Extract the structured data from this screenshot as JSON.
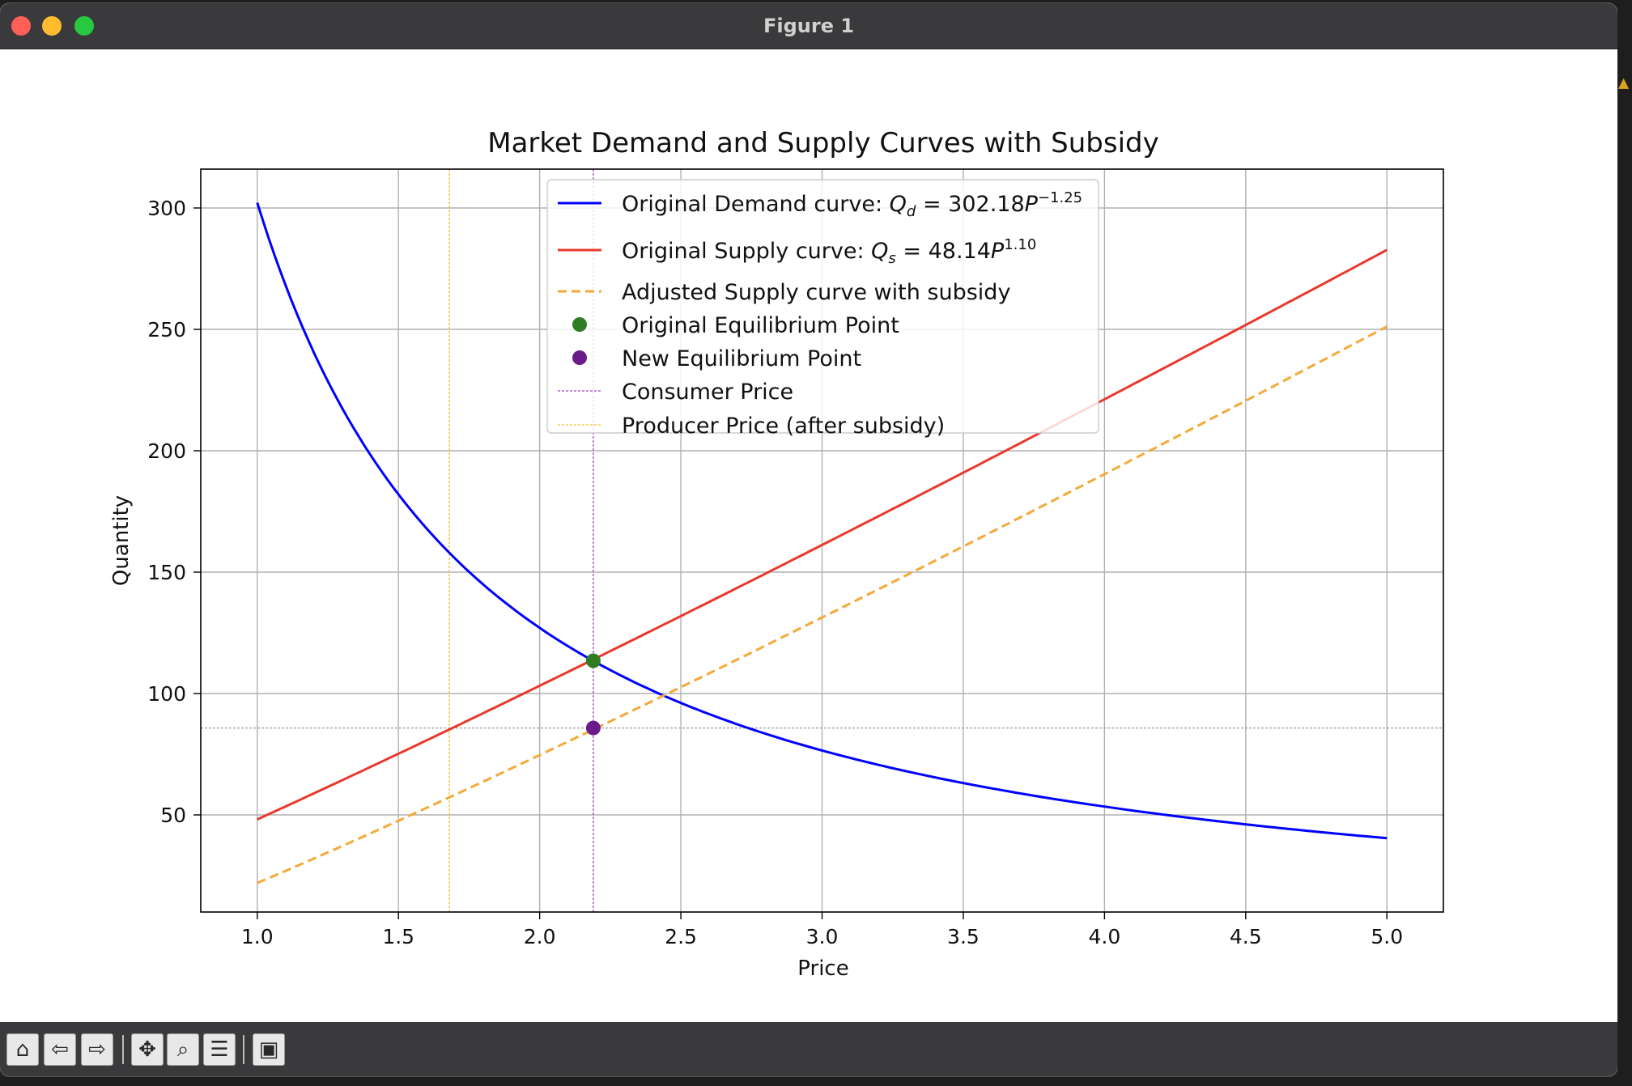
{
  "window": {
    "title": "Figure 1"
  },
  "toolbar": {
    "buttons": [
      {
        "name": "home-button",
        "icon": "home-icon",
        "glyph": "⌂"
      },
      {
        "name": "back-button",
        "icon": "arrow-left-icon",
        "glyph": "⇦"
      },
      {
        "name": "forward-button",
        "icon": "arrow-right-icon",
        "glyph": "⇨"
      },
      {
        "name": "pan-button",
        "icon": "move-icon",
        "glyph": "✥"
      },
      {
        "name": "zoom-button",
        "icon": "zoom-icon",
        "glyph": "⌕"
      },
      {
        "name": "configure-subplots-button",
        "icon": "sliders-icon",
        "glyph": "☰"
      },
      {
        "name": "save-button",
        "icon": "save-icon",
        "glyph": "▣"
      }
    ]
  },
  "chart_data": {
    "type": "line",
    "title": "Market Demand and Supply Curves with Subsidy",
    "xlabel": "Price",
    "ylabel": "Quantity",
    "xlim": [
      0.8,
      5.2
    ],
    "ylim": [
      10,
      316
    ],
    "xticks": [
      1.0,
      1.5,
      2.0,
      2.5,
      3.0,
      3.5,
      4.0,
      4.5,
      5.0
    ],
    "xtick_labels": [
      "1.0",
      "1.5",
      "2.0",
      "2.5",
      "3.0",
      "3.5",
      "4.0",
      "4.5",
      "5.0"
    ],
    "yticks": [
      50,
      100,
      150,
      200,
      250,
      300
    ],
    "ytick_labels": [
      "50",
      "100",
      "150",
      "200",
      "250",
      "300"
    ],
    "grid": true,
    "legend_position": "upper-center",
    "series": [
      {
        "name": "Original Demand curve",
        "legend_prefix": "Original Demand curve: ",
        "legend_formula": {
          "symbol": "Q",
          "sub": "d",
          "coef": "302.18",
          "exp": "−1.25"
        },
        "color": "#0000ff",
        "style": "solid",
        "model": {
          "coef": 302.18,
          "exp": -1.25
        },
        "x_range": [
          1.0,
          5.0
        ]
      },
      {
        "name": "Original Supply curve",
        "legend_prefix": "Original Supply curve: ",
        "legend_formula": {
          "symbol": "Q",
          "sub": "s",
          "coef": "48.14",
          "exp": "1.10"
        },
        "color": "#e8392c",
        "style": "solid",
        "model": {
          "coef": 48.14,
          "exp": 1.1
        },
        "x_range": [
          1.0,
          5.0
        ]
      },
      {
        "name": "Adjusted Supply curve with subsidy",
        "color": "#f4a93a",
        "style": "dashed",
        "model": {
          "coef": 48.14,
          "exp": 1.1,
          "subsidy_price_shift": 0.51
        },
        "x_range": [
          1.0,
          5.0
        ]
      }
    ],
    "points": [
      {
        "name": "Original Equilibrium Point",
        "x": 2.19,
        "y": 113.5,
        "color": "#2e7d22"
      },
      {
        "name": "New Equilibrium Point",
        "x": 2.19,
        "y": 85.8,
        "color": "#6a1b8a"
      }
    ],
    "vlines": [
      {
        "name": "Consumer Price",
        "x": 2.19,
        "color": "#a040c0",
        "style": "dashed"
      },
      {
        "name": "Producer Price (after subsidy)",
        "x": 1.68,
        "color": "#f0c030",
        "style": "dashed"
      }
    ],
    "hlines": [
      {
        "y": 85.8,
        "color": "#999999",
        "style": "dashed"
      }
    ]
  }
}
